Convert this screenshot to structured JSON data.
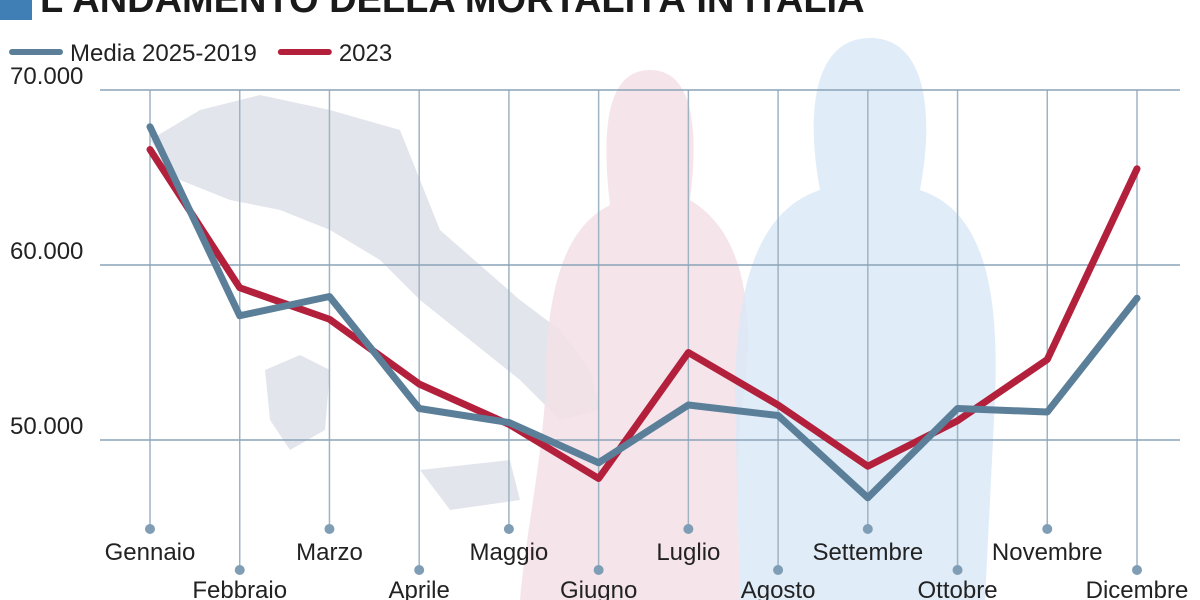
{
  "chart_data": {
    "type": "line",
    "title": "L'ANDAMENTO DELLA MORTALITÀ IN ITALIA",
    "categories": [
      "Gennaio",
      "Febbraio",
      "Marzo",
      "Aprile",
      "Maggio",
      "Giugno",
      "Luglio",
      "Agosto",
      "Settembre",
      "Ottobre",
      "Novembre",
      "Dicembre"
    ],
    "series": [
      {
        "name": "Media 2025-2019",
        "color": "#5b7f99",
        "values": [
          67900,
          57100,
          58200,
          51800,
          51000,
          48700,
          52000,
          51400,
          46700,
          51800,
          51600,
          58100
        ]
      },
      {
        "name": "2023",
        "color": "#b3203c",
        "values": [
          66600,
          58700,
          56900,
          53200,
          50900,
          47800,
          55000,
          52000,
          48500,
          51100,
          54600,
          65500
        ]
      }
    ],
    "ylim": [
      45000,
      70000
    ],
    "yticks": [
      {
        "value": 50000,
        "label": "50.000"
      },
      {
        "value": 60000,
        "label": "60.000"
      },
      {
        "value": 70000,
        "label": "70.000"
      }
    ],
    "grid": true
  }
}
